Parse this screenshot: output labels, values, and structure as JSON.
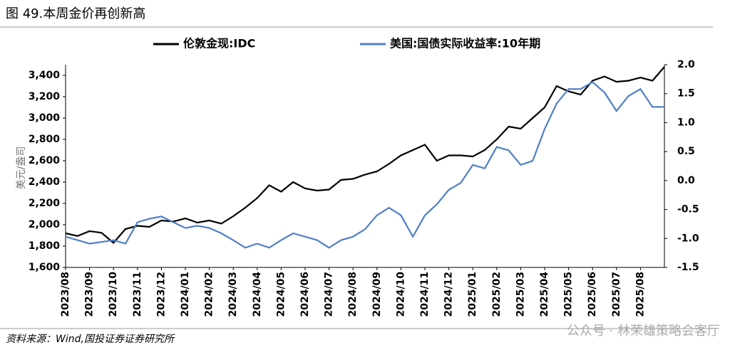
{
  "chart_data": {
    "type": "line",
    "title": "图 49.本周金价再创新高",
    "y_label": "美元/盎司",
    "source": "资料来源：Wind,国投证券证券研究所",
    "watermark": "公众号 · 林荣雄策略会客厅",
    "x": [
      "2023/08",
      null,
      "2023/09",
      null,
      "2023/10",
      null,
      "2023/11",
      null,
      "2023/12",
      null,
      "2024/01",
      null,
      "2024/02",
      null,
      "2024/03",
      null,
      "2024/04",
      null,
      "2024/05",
      null,
      "2024/06",
      null,
      "2024/07",
      null,
      "2024/08",
      null,
      "2024/09",
      null,
      "2024/10",
      null,
      "2024/11",
      null,
      "2024/12",
      null,
      "2025/01",
      null,
      "2025/02",
      null,
      "2025/03",
      null,
      "2025/04",
      null,
      "2025/05",
      null,
      "2025/06",
      null,
      "2025/07",
      null,
      "2025/08",
      null,
      null
    ],
    "series": [
      {
        "name": "伦敦金现:IDC",
        "color": "#000000",
        "values": [
          1920,
          1895,
          1940,
          1925,
          1830,
          1960,
          1990,
          1980,
          2040,
          2030,
          2060,
          2020,
          2040,
          2010,
          2080,
          2160,
          2250,
          2370,
          2310,
          2400,
          2340,
          2320,
          2330,
          2420,
          2430,
          2470,
          2500,
          2570,
          2650,
          2700,
          2750,
          2600,
          2650,
          2650,
          2640,
          2700,
          2800,
          2920,
          2900,
          3000,
          3100,
          3300,
          3250,
          3220,
          3350,
          3390,
          3340,
          3350,
          3380,
          3350,
          3480
        ]
      },
      {
        "name": "美国:国债实际收益率:10年期",
        "color": "#4f7fc8",
        "axis": "y2",
        "values": [
          -0.97,
          -1.03,
          -1.09,
          -1.06,
          -1.03,
          -1.09,
          -0.72,
          -0.66,
          -0.62,
          -0.72,
          -0.82,
          -0.78,
          -0.82,
          -0.91,
          -1.03,
          -1.16,
          -1.09,
          -1.16,
          -1.03,
          -0.91,
          -0.97,
          -1.03,
          -1.16,
          -1.03,
          -0.97,
          -0.84,
          -0.6,
          -0.47,
          -0.6,
          -0.97,
          -0.6,
          -0.41,
          -0.16,
          -0.04,
          0.27,
          0.21,
          0.58,
          0.52,
          0.27,
          0.34,
          0.89,
          1.33,
          1.58,
          1.58,
          1.7,
          1.52,
          1.2,
          1.46,
          1.58,
          1.27,
          1.27
        ]
      }
    ],
    "ylim": [
      1600,
      3500
    ],
    "yticks": [
      {
        "value": 1600,
        "label": "1,600"
      },
      {
        "value": 1800,
        "label": "1,800"
      },
      {
        "value": 2000,
        "label": "2,000"
      },
      {
        "value": 2200,
        "label": "2,200"
      },
      {
        "value": 2400,
        "label": "2,400"
      },
      {
        "value": 2600,
        "label": "2,600"
      },
      {
        "value": 2800,
        "label": "2,800"
      },
      {
        "value": 3000,
        "label": "3,000"
      },
      {
        "value": 3200,
        "label": "3,200"
      },
      {
        "value": 3400,
        "label": "3,400"
      }
    ],
    "y2lim": [
      -1.5,
      2.0
    ],
    "y2ticks": [
      {
        "value": -1.5,
        "label": "-1.5"
      },
      {
        "value": -1.0,
        "label": "-1.0"
      },
      {
        "value": -0.5,
        "label": "-0.5"
      },
      {
        "value": 0.0,
        "label": "0.0"
      },
      {
        "value": 0.5,
        "label": "0.5"
      },
      {
        "value": 1.0,
        "label": "1.0"
      },
      {
        "value": 1.5,
        "label": "1.5"
      },
      {
        "value": 2.0,
        "label": "2.0"
      }
    ],
    "grid": false,
    "legend": "top"
  }
}
